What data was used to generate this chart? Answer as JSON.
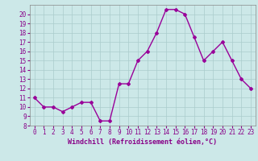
{
  "x": [
    0,
    1,
    2,
    3,
    4,
    5,
    6,
    7,
    8,
    9,
    10,
    11,
    12,
    13,
    14,
    15,
    16,
    17,
    18,
    19,
    20,
    21,
    22,
    23
  ],
  "y": [
    11,
    10,
    10,
    9.5,
    10,
    10.5,
    10.5,
    8.5,
    8.5,
    12.5,
    12.5,
    15,
    16,
    18,
    20.5,
    20.5,
    20,
    17.5,
    15,
    16,
    17,
    15,
    13,
    12
  ],
  "line_color": "#990099",
  "marker": "D",
  "marker_size": 2.0,
  "bg_color": "#cce8e8",
  "grid_color": "#aacccc",
  "xlabel": "Windchill (Refroidissement éolien,°C)",
  "xlabel_color": "#880088",
  "tick_color": "#880088",
  "ylim": [
    8,
    21
  ],
  "xlim": [
    -0.5,
    23.5
  ],
  "yticks": [
    8,
    9,
    10,
    11,
    12,
    13,
    14,
    15,
    16,
    17,
    18,
    19,
    20
  ],
  "xticks": [
    0,
    1,
    2,
    3,
    4,
    5,
    6,
    7,
    8,
    9,
    10,
    11,
    12,
    13,
    14,
    15,
    16,
    17,
    18,
    19,
    20,
    21,
    22,
    23
  ],
  "tick_fontsize": 5.5,
  "xlabel_fontsize": 6.0,
  "linewidth": 1.0
}
